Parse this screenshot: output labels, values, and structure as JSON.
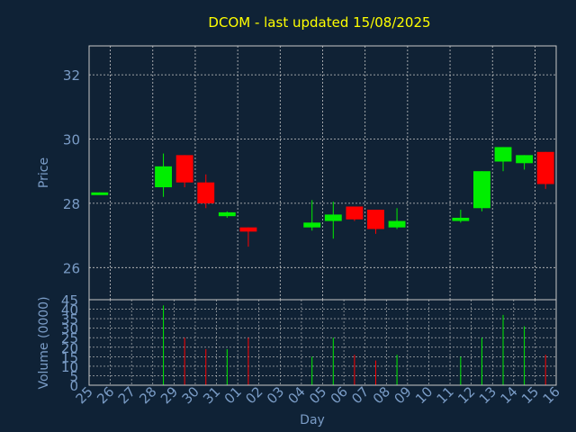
{
  "chart_data": {
    "type": "candlestick",
    "title": "DCOM - last updated 15/08/2025",
    "xlabel": "Day",
    "price_panel": {
      "ylabel": "Price",
      "ylim": [
        25.0,
        32.9
      ],
      "yticks": [
        "26",
        "28",
        "30",
        "32"
      ],
      "grid": true
    },
    "volume_panel": {
      "ylabel": "Volume (0000)",
      "ylim": [
        0,
        45
      ],
      "yticks": [
        "0",
        "5",
        "10",
        "15",
        "20",
        "25",
        "30",
        "35",
        "40",
        "45"
      ],
      "grid": true
    },
    "x_ticks": [
      "25",
      "26",
      "27",
      "28",
      "29",
      "30",
      "31",
      "01",
      "02",
      "03",
      "04",
      "05",
      "06",
      "07",
      "08",
      "09",
      "10",
      "11",
      "12",
      "13",
      "14",
      "15",
      "16"
    ],
    "candles": [
      {
        "day": "25",
        "open": 28.3,
        "close": 28.34,
        "high": 28.34,
        "low": 28.3,
        "volume": 0
      },
      {
        "day": "28",
        "open": 28.5,
        "close": 29.15,
        "high": 29.55,
        "low": 28.2,
        "volume": 42
      },
      {
        "day": "29",
        "open": 29.5,
        "close": 28.65,
        "high": 29.5,
        "low": 28.5,
        "volume": 25
      },
      {
        "day": "30",
        "open": 28.65,
        "close": 28.0,
        "high": 28.9,
        "low": 27.85,
        "volume": 19
      },
      {
        "day": "31",
        "open": 27.6,
        "close": 27.72,
        "high": 27.75,
        "low": 27.55,
        "volume": 19
      },
      {
        "day": "01",
        "open": 27.25,
        "close": 27.12,
        "high": 27.25,
        "low": 26.65,
        "volume": 25
      },
      {
        "day": "04",
        "open": 27.25,
        "close": 27.4,
        "high": 28.1,
        "low": 27.15,
        "volume": 15
      },
      {
        "day": "05",
        "open": 27.45,
        "close": 27.65,
        "high": 28.05,
        "low": 26.9,
        "volume": 25
      },
      {
        "day": "06",
        "open": 27.9,
        "close": 27.5,
        "high": 27.9,
        "low": 27.45,
        "volume": 16
      },
      {
        "day": "07",
        "open": 27.8,
        "close": 27.2,
        "high": 27.8,
        "low": 27.05,
        "volume": 13
      },
      {
        "day": "08",
        "open": 27.25,
        "close": 27.45,
        "high": 27.85,
        "low": 27.2,
        "volume": 16
      },
      {
        "day": "11",
        "open": 27.45,
        "close": 27.55,
        "high": 27.8,
        "low": 27.4,
        "volume": 15
      },
      {
        "day": "12",
        "open": 27.85,
        "close": 29.0,
        "high": 29.0,
        "low": 27.75,
        "volume": 25
      },
      {
        "day": "13",
        "open": 29.3,
        "close": 29.75,
        "high": 29.75,
        "low": 29.0,
        "volume": 37
      },
      {
        "day": "14",
        "open": 29.25,
        "close": 29.5,
        "high": 29.5,
        "low": 29.05,
        "volume": 31
      },
      {
        "day": "15",
        "open": 29.6,
        "close": 28.6,
        "high": 29.6,
        "low": 28.45,
        "volume": 16
      }
    ],
    "colors": {
      "background": "#0f2236",
      "panel": "#102235",
      "grid": "#c8c8c8",
      "axis_text": "#7a9cc6",
      "title": "#ffff00",
      "up": "#00ee00",
      "down": "#ff0000",
      "frame": "#c8c8c8"
    }
  }
}
